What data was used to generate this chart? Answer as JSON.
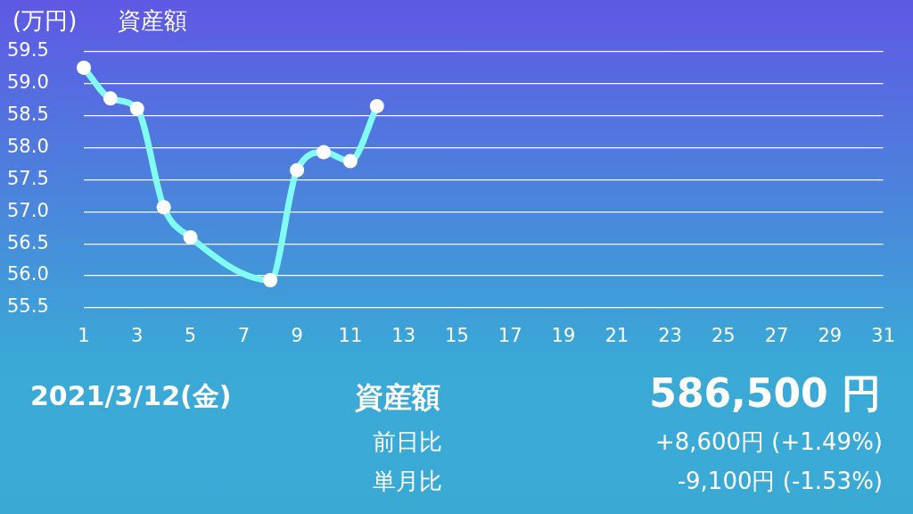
{
  "chart_data": {
    "type": "line",
    "title": "資産額",
    "ylabel": "(万円)",
    "x": [
      1,
      2,
      3,
      4,
      5,
      8,
      9,
      10,
      11,
      12
    ],
    "series": [
      {
        "color": "#80fcf4",
        "values": [
          59.25,
          58.77,
          58.61,
          57.07,
          56.6,
          55.93,
          57.65,
          57.93,
          57.79,
          58.65
        ]
      }
    ],
    "xlim": [
      1,
      31
    ],
    "xticks": [
      1,
      3,
      5,
      7,
      9,
      11,
      13,
      15,
      17,
      19,
      21,
      23,
      25,
      27,
      29,
      31
    ],
    "ylim": [
      55.5,
      59.5
    ],
    "yticks": [
      {
        "value": 55.5,
        "label": "55.5"
      },
      {
        "value": 56,
        "label": "56.0"
      },
      {
        "value": 56.5,
        "label": "56.5"
      },
      {
        "value": 57,
        "label": "57.0"
      },
      {
        "value": 57.5,
        "label": "57.5"
      },
      {
        "value": 58,
        "label": "58.0"
      },
      {
        "value": 58.5,
        "label": "58.5"
      },
      {
        "value": 59,
        "label": "59.0"
      },
      {
        "value": 59.5,
        "label": "59.5"
      }
    ],
    "grid": "y",
    "legend": false,
    "marker": "circle",
    "line_style": "solid",
    "annotations": [
      "2021/3/12(金)",
      "資産額",
      "586,500 円",
      "前日比",
      "+8,600円 (+1.49%)",
      "単月比",
      "-9,100円 (-1.53%)"
    ]
  }
}
